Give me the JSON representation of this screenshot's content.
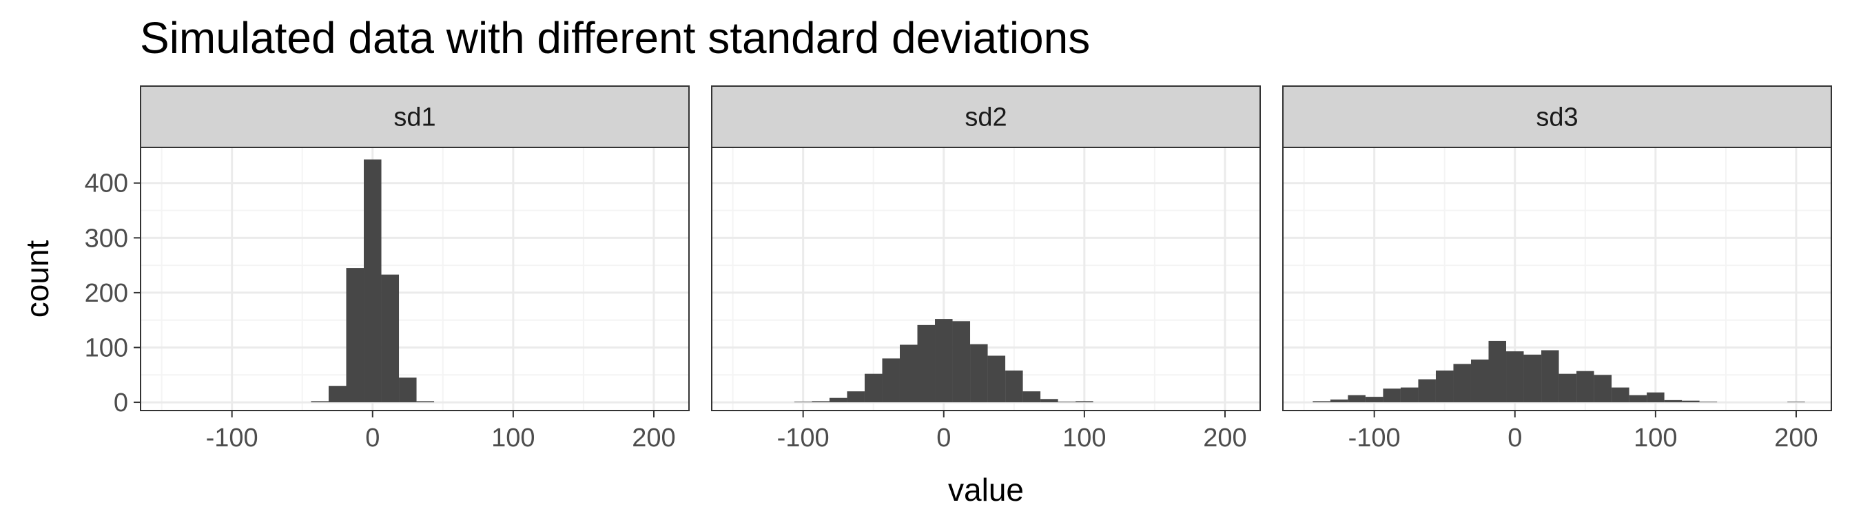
{
  "colors": {
    "bar": "#474747",
    "strip_fill": "#d3d3d3",
    "panel_border": "#333333",
    "grid_major": "#ebebeb",
    "grid_minor": "#f4f4f4",
    "tick_label": "#4d4d4d",
    "text": "#000000"
  },
  "chart_data": {
    "type": "bar",
    "title": "Simulated data with different standard deviations",
    "xlabel": "value",
    "ylabel": "count",
    "xlim": [
      -165,
      225
    ],
    "ylim": [
      -15,
      465
    ],
    "x_ticks": [
      -100,
      0,
      100,
      200
    ],
    "y_ticks": [
      0,
      100,
      200,
      300,
      400
    ],
    "grid": true,
    "bin_width": 12.5,
    "facets": [
      {
        "label": "sd1",
        "bins": [
          {
            "x": -37.5,
            "count": 2
          },
          {
            "x": -25,
            "count": 30
          },
          {
            "x": -12.5,
            "count": 245
          },
          {
            "x": 0,
            "count": 443
          },
          {
            "x": 12.5,
            "count": 233
          },
          {
            "x": 25,
            "count": 45
          },
          {
            "x": 37.5,
            "count": 2
          }
        ]
      },
      {
        "label": "sd2",
        "bins": [
          {
            "x": -100,
            "count": 1
          },
          {
            "x": -87.5,
            "count": 2
          },
          {
            "x": -75,
            "count": 8
          },
          {
            "x": -62.5,
            "count": 20
          },
          {
            "x": -50,
            "count": 52
          },
          {
            "x": -37.5,
            "count": 80
          },
          {
            "x": -25,
            "count": 105
          },
          {
            "x": -12.5,
            "count": 141
          },
          {
            "x": 0,
            "count": 152
          },
          {
            "x": 12.5,
            "count": 148
          },
          {
            "x": 25,
            "count": 106
          },
          {
            "x": 37.5,
            "count": 85
          },
          {
            "x": 50,
            "count": 58
          },
          {
            "x": 62.5,
            "count": 20
          },
          {
            "x": 75,
            "count": 6
          },
          {
            "x": 87.5,
            "count": 1
          },
          {
            "x": 100,
            "count": 2
          }
        ]
      },
      {
        "label": "sd3",
        "bins": [
          {
            "x": -137.5,
            "count": 2
          },
          {
            "x": -125,
            "count": 5
          },
          {
            "x": -112.5,
            "count": 13
          },
          {
            "x": -100,
            "count": 10
          },
          {
            "x": -87.5,
            "count": 25
          },
          {
            "x": -75,
            "count": 27
          },
          {
            "x": -62.5,
            "count": 42
          },
          {
            "x": -50,
            "count": 58
          },
          {
            "x": -37.5,
            "count": 70
          },
          {
            "x": -25,
            "count": 78
          },
          {
            "x": -12.5,
            "count": 112
          },
          {
            "x": 0,
            "count": 93
          },
          {
            "x": 12.5,
            "count": 87
          },
          {
            "x": 25,
            "count": 95
          },
          {
            "x": 37.5,
            "count": 52
          },
          {
            "x": 50,
            "count": 57
          },
          {
            "x": 62.5,
            "count": 50
          },
          {
            "x": 75,
            "count": 27
          },
          {
            "x": 87.5,
            "count": 13
          },
          {
            "x": 100,
            "count": 18
          },
          {
            "x": 112.5,
            "count": 4
          },
          {
            "x": 125,
            "count": 3
          },
          {
            "x": 137.5,
            "count": 1
          },
          {
            "x": 200,
            "count": 1
          }
        ]
      }
    ]
  }
}
